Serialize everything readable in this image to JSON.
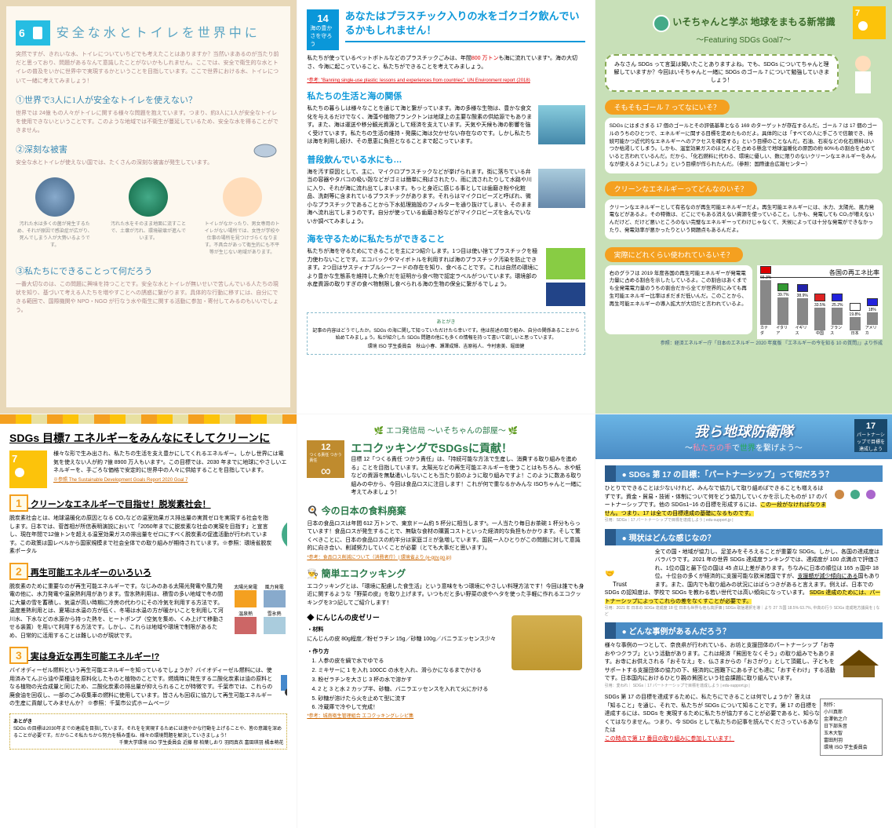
{
  "p1": {
    "sdg_num": "6",
    "sdg_label": "安全な水とトイレを世界中に",
    "title": "安全な水とトイレを世界中に",
    "intro": "突然ですが、きれいな水、トイレについていちどでも考えたことはありますか？当然いまあるのが当たり前だと思っており、問題があるなんて意識したことがないかもしれません。ここでは、安全で衛生的な水とトイレの普及をいかに世界中で実現するかということを目指しています。ここで世界における水、トイレについて一緒に考えてみましょう！",
    "h1": "①世界で3人に1人が安全なトイレを使えない？",
    "b1": "世界では 24億 もの人々がトイレに関する様々な問題を抱えています。つまり、約3人に1人が安全なトイレを使用できないということです。このような地域では不衛生が蔓延しているため、安全な水を得ることができません。",
    "h2": "②深刻な被害",
    "b2": "安全な水とトイレが使えない国では、たくさんの深刻な被害が発生しています。",
    "icon1_cap": "汚れた水は多くの菌が発生するため、それが原因で感染症が広がり、死んでしまう人が大勢いるようです。",
    "icon2_cap": "汚れた水をそのまま地面に流すことで、土壌が汚れ、環境破壊が進んでいます。",
    "icon3_cap": "トイレがなかったり、男女専用のトイレがない場所では、女性が学校や仕事の場所を見つけづらくなります。不具合があって衛生的にも不平等が生じない地域があります。",
    "h3": "③私たちにできることって何だろう",
    "b3": "一番大切なのは、この問題に興味を持つことです。安全な水とトイレが無いせいで苦しんでいる人たちの現状を知り、基づいて考える人たちを増やすことへの誘惑に繋がります。具体的な行動に移すには、自分にできる範囲で、国際機関や NPO・NGO が行なう水や衛生に関する活動に参加・寄付してみるのもいいでしょう。"
  },
  "p2": {
    "sdg_num": "14",
    "sdg_label": "海の豊かさを守ろう",
    "title": "あなたはプラスチック入りの水をゴクゴク飲んでいるかもしれません！",
    "intro_a": "私たちが使っているペットボトルなどのプラスチックごみは、年間",
    "intro_red": "800 万トン",
    "intro_b": "も海に流れています*。海の大切さ、今海に起こっていること、私たちができることを考えてみましょう。",
    "src": "*参考: \"Banning single-use plastic: lessons and experiences from countries\", UN Environment report (2018)",
    "h1": "私たちの生活と海の関係",
    "b1": "私たちの暮らしは様々なことを通じて海と繋がっています。海の多様な生物は、豊かな食文化を与えるだけでなく、海藻や植物プランクトンは地球上の主要な酸素の供給源でもあります。また、海は運送や移分観光資源として経済を支えています。天気や天候も海の影響を強く受けています。私たちの生活の維持・発展に海は欠かせない存在なのです。しかし私たちは海を利用し続け、その恩恵に負担となることまで起こっています。",
    "h2": "普段飲んでいる水にも…",
    "b2": "海を汚す原因として、主に、マイクロプラスチックなどが挙げられます。街に落ちている弁当の容器やタバコの吸い殻などがゴミは簡単に飛ばされたり、雨に流されたりして水路や川に入り、それが海に流れ出てしまいます。もっと身近に感じる事としては歯磨き粉や化粧品、洗剤等に含まれているプラスチックがあります。それらはマイクロビーズと呼ばれ、微小なプラスチックであることから下水処理施設のフィルターを通り抜けてしまい、そのまま海へ流れ出てしまうのです。自分が使っている歯磨き粉などがマイクロビーズを含んでいないか調べてみましょう。",
    "h3": "海を守るために私たちができること",
    "b3": "私たちが海を守るためにできることを主に2つ紹介します。1つ目は使い捨てプラスチックを極力使わないことです。エコバックやマイボトルを利用すれば海のプラスチック汚染を防止できます。2つ目はサスティナブルシーフードの存在を知り、食べることです。これは自然の環境により豊かな生態系を維持した魚介だを証明から食べ物で認定ラベルがついています。環境部の水産資源の取りすぎの食べ物制限し食べられる海の生物の保全に繋がるでしょう。",
    "after_title": "あとがき",
    "after_body": "記事の内容はどうでしたか。SDGs の海に関して知っていただけたら幸いです。他は前述の取り組み、自分の関係あることから始めてみましょう。私が紹介した SDGs 問題の他にも多くの情報を持って書いて欲しいと思っています。",
    "credit": "環境 ISO 学生委員会　秋山小春、瀬澤成輝、吉原裕人、今村恵美、堀田健"
  },
  "p3": {
    "sdg_num": "7",
    "sdg_label": "エネルギーをみんなに",
    "title": "いそちゃんと学ぶ 地球をまもる新常識",
    "subtitle": "〜Featuring SDGs Goal7〜",
    "intro": "みなさん SDGs って言葉は聞いたことありますよね。でも、SDGs についてちゃんと理解していますか？今回はいそちゃんと一緒に SDGs のゴール 7 について勉強していきましょう！",
    "q1": "そもそもゴール 7 ってなにいそ？",
    "a1": "SDGs にはまさまる 17 個のゴールとその評価基準となる 169 のターゲットが存在するんだ。ゴール 7 は 17 個のゴールのうちのひとつで、エネルギーに関する目標を定めたものだよ。具体的には「すべての人に手ごろで信頼でき、持続可能かつ近代的なエネルギーへのアクセスを確保する」という目標のことなんだ。石油、石炭などの化石燃料はいつか枯渇してしまう。しかも、温室効果ガスのほとんどを占める懸念で地球温暖化の原因の約 60%もの割合を占めていると言われているんだ。だから、「化石燃料に代わる、環境に優しい、数に限りのないクリーンなエネルギーをみんなが使えるようにしよう」という目標が作られたんだ。（参照：国際連合広報センター）",
    "q2": "クリーンなエネルギーってどんなのいそ？",
    "a2": "クリーンなエネルギーとして有名なのが再生可能エネルギーだよ。再生可能エネルギーには、水力、太陽光、風力発電などがあるよ。その特徴は、どこにでもある消えない資源を使っていること。しかも、発電しても CO₂が増えないんだけど、だけど悪いところのない完璧なエネルギーってわけじゃなくて、天候によっては十分な発電ができなかったり、発電効率が悪かったりという問題点もあるんだよ。",
    "q3": "実際にどれくらい使われているいそ？",
    "a3": "右のグラフは 2019 年度各国の再生可能エネルギーが発電電力量に占める割合を示したしているよ。この割合はあくまでも全発電電力量のうちの割合だから全てが世界的にみても再生可能エネルギー比率はまだまだ低いんだ。このことから、再生可能エネルギーの導入拡大が大切だと言われているよ。",
    "chart": {
      "title": "各国の再エネ比率",
      "countries": [
        "カナダ",
        "イタリア",
        "イギリス",
        "中国",
        "フランス",
        "日本",
        "アメリカ"
      ],
      "values": [
        66.3,
        39.7,
        38.9,
        33.5,
        25.2,
        19.8,
        18.0
      ],
      "bar_color": "#888888",
      "flag_colors": [
        "#d00",
        "#393",
        "#22a",
        "#d22",
        "#22d",
        "#fff",
        "#22d"
      ],
      "max": 70
    },
    "src": "参照：経済エネルギー庁「日本のエネルギー 2020 年度版 『エネルギーの今を知る 10 の質問』」より作成"
  },
  "p4": {
    "title": "SDGs 目標7 エネルギーをみんなにそしてクリーンに",
    "sdg_num": "7",
    "intro": "様々な形で生み出され、私たちの生活を支え豊かにしてくれるエネルギー。しかし世界には電気を使えない人が約 7億 8900 万人もいます*。この目標では、2030 年までに地球にやさしいエネルギーを、手ごろな価格で安定的に世界中の人々に供給することを目指しています。",
    "src": "※参照 The Sustainable Development Goals Report 2020 Goal 7",
    "h1_num": "1",
    "h1": "クリーンなエネルギーで目指せ！脱炭素社会！",
    "b1": "脱炭素社会とは、地球温暖化の原因となる CO₂などの温室効果ガス排出量の実質ゼロを実現する社会を指します。日本では、菅首相が所信表明演説において「2050年までに脱炭素な社会の実現を目指す」と宣言し、現在年間で12億トンを超える温室効果ガスの排出量をゼロにすべく脱炭素の促進活動が行われています。この政策は国レベルから国家規模まで社会全体での取り組みが期待されています。※参照：環境省脱炭素ポータル",
    "h2_num": "2",
    "h2": "再生可能エネルギーのいろいろ",
    "b2": "脱炭素のために重要なのが再生可能エネルギーです。なじみのある太陽光発電や風力発電の他に、水力発電や温泉熱利用があります。雪氷熱利用は、積雪の多い地域で冬の間に大量の雪を蓄積し、気温が高い時期に冷房の代わりにその冷気を利用する方法です。温度差熱利用とは、夏場は水温の方が低く、冬場は水温の方が暖かいことを利用して河川水、下水などの水源から持った熱を、ヒートポンプ（空気を集め、くみ上げて移動させる装置）を用いて利用する方法です。しかし、これらは地域や環境で制限があるため、日常的に活用することは難しいのが現状です。",
    "icon_labels": [
      "太陽光発電",
      "風力発電",
      "温泉熱",
      "雪氷熱"
    ],
    "h3_num": "3",
    "h3": "実は身近な再生可能エネルギー!?",
    "b3": "バイオディーゼル燃料という再生可能エネルギーを知っているでしょうか？バイオディーゼル燃料には、使用済みてんぷら油や菜種油を原料化したものと植物のことです。燃焼時に発生する二酸化炭素は油の原料となる植物の光合成量と同じため、二酸化炭素の排出量が抑えられることが特徴です。千葉市では、これらの廃食油を回収し、一部のごみ収集車の燃料に使用しています。皆さんも回収に協力して再生可能エネルギーの生産に貢献してみませんか？ ※参照：千葉市公式ホームページ",
    "after_title": "あとがき",
    "after_body": "SDGs の目標は2030年までの達成を目指しています。それをを実現するためには速やかな行動を上げることや、皆の意識を深めることが必要です。だからこそ私たちから努力を積み重ね、様々の環境問題を解決していきましょう！",
    "credit": "千葉大学環境 ISO 学生委員会 近藤 郁 柏葉しおり 羽岡真衣 富田琪羽 橘本萌花"
  },
  "p5": {
    "station": "エコ発信局 〜いそちゃんの部屋〜",
    "sdg_num": "12",
    "sdg_label": "つくる責任 つかう責任",
    "title": "エコクッキングでSDGsに貢献！",
    "intro": "目標 12「つくる責任 つかう責任」は、「持続可能な方法で生産し、消費する取り組みを進める」ことを目指しています。太陽光などの再生可能エネルギーを使うことはもちろん、水や紙などの資源を無駄遣いしないことも当たり前のように取り組みですよ！このように数ある取り組みの中から、今回は食品ロスに注目します！これが何で重なるかみんな ISOちゃんと一緒に考えてみましょう！",
    "h1": "今の日本の食料廃棄",
    "b1": "日本の食品ロスは年間 612 万トンで、東京ドーム約 5 杯分に相当します*。一人当たり毎日お茶碗 1 杯分もらっています！食品ロスが発生することで、無駄な食材の購置コストといった経済的な負担もかかります。そして驚くべきことに、日本の食品ロスの約半分は家庭ゴミが急増しています。国民一人ひとりがこの問題に対して意識的に向き合い、削減努力していくことが必要（とても大事だと思います）。",
    "src1": "*参考：食品ロス削減について（消費者庁）| 環境省より (e-gov.go.jp)",
    "h2": "簡単エコクッキング",
    "b2": "エコクッキングとは、「環境に配慮した食生活」という意味をもつ環境にやさしい料理方法です！今回は誰でも身近に関するような「野菜の皮」を取り上げます。いつもだと多い野菜の皮やヘタを使った手軽に作れるエコクッキングを3つ記してご紹介します！",
    "recipe_title": "◆ にんじんの皮ゼリー",
    "ingredients_label": "・材料",
    "ingredients": "にんじんの皮 80g程度／粉ゼラチン 15g／砂糖 100g／バニラエッセンス少々",
    "steps_label": "・作り方",
    "steps": [
      "人参の皮を鍋で水でゆでる",
      "ミキサーに 1 を入れ 100CC の水を入れ、滑らかになるまでかける",
      "粉ゼラチンを大さじ 3 杯の水で溶かす",
      "2 と 3 と水 2 カップ半、砂糖、バニラエッセンスを入れて火にかける",
      "砂糖が溶けたら火を止めて型に流す",
      "冷蔵庫で冷やして完成！"
    ],
    "src2": "*参考：城南衛生管理組合 エコクッキングレシピ集"
  },
  "p6": {
    "title": "我ら地球防衛隊",
    "subtitle_a": "〜",
    "subtitle_pink": "私たちの手",
    "subtitle_b": "で",
    "subtitle_c": "世界",
    "subtitle_d": "を繋げよう〜",
    "sdg_num": "17",
    "sdg_label": "パートナーシップで目標を達成しよう",
    "h1": "SDGs 第 17 の目標：「パートナーシップ」って何だろう？",
    "b1": "ひとりでできることは少ないけれど、みんなで協力して取り組めばできることも増えるはずです。資金・貿易・技術・体制について何をどう協力していくかを示したものが 17 のパートナーシップです。他の SDGs1~16 の目標を形成するには、",
    "b1_hl": "この一段がなければなりません。つまり、17 は全ての目標達成の基礎になるものです。",
    "b1_src": "引用：SDGs｜17 パートナーシップで目標を達成しよう | edu-support.jp |",
    "h2": "現状はどんな感じなの？",
    "b2": "全ての国・地域が協力し、足並みをそろえることが重要な SDGs。しかし、各国の達成度はバラバラです。2021 年の世界 SDGs 達成度ランキングでは、達成度が 100 点満点で評価され、1位の国と最下位の国は 45 点以上差があります。ちなみに日本の順位は 165 ヵ国中 18 位。十位台の多くが経済的に支援可能な欧米諸国ですが、",
    "b2_ul": "支援額が減少傾向にある",
    "b2_b": "国もあります。また、国内でも取り組みの状況にはばらつきがあると言えます。例えば、日本での SDGs の認知度は、学校で SDGs を教わる若い世代では高い傾向になっています。",
    "b2_hl": "SDGs 達成のためには、パートナーシップによってこれらの差をなくすことが必要です。",
    "b2_src": "引用：2021 年 日本の SDGs 達成度 18 位 日本も世界も他も高評価 | SDGs 取捨選択を導｜より 27 カ国 18.5% 63.7%, 中高の行う SDGs 達成地方議員を | など",
    "h3": "どんな事例があるんだろう？",
    "b3": "様々な事例の一つとして、奈良県が行われている、お坊と支援団体のパートナーシップ「お寺おやつクラブ」という活動があります。これは経済「貧困をなくそう」の取り組みでもあります。お寺にお供えされる「おそなえ」を、仏さまからの「おさがり」として頂戴し、子どもをサポートする支援団体の協力の下、経済的に困難下にある子ども達に「おすそわけ」する活動です。日本国内におけるひとり親の貧困という社会課題に取り組んでいます。",
    "b3_src": "引用：変われ｜ SDGs｜17 パートナーシップで目標を達成しよう | edu-support.jp |",
    "closing": "SDGs 第 17 の目標を達成するために、私たちにできることは何でしょうか？答えは「知ること」を通じ、それで、私たちが SDGs について知ることです。第 17 の目標を達成するには、SDGs を 実現するために私たちが協力することが必要であると、知らなくてはなりません。つまり、今 SDGs として私たちの記事を読んでくださっているあなたは",
    "closing_hl": "この時点で第 17 番目の取り組みに参加しています！",
    "credits_label": "制作：",
    "credits": [
      "小川真郎",
      "金澤佑之介",
      "日下部朱音",
      "玉木大智",
      "富田刑羽",
      "環境 ISO 学生委員会"
    ]
  }
}
